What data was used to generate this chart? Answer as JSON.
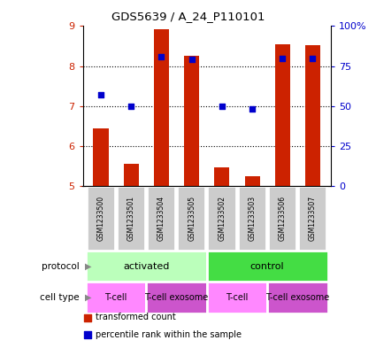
{
  "title": "GDS5639 / A_24_P110101",
  "samples": [
    "GSM1233500",
    "GSM1233501",
    "GSM1233504",
    "GSM1233505",
    "GSM1233502",
    "GSM1233503",
    "GSM1233506",
    "GSM1233507"
  ],
  "transformed_count": [
    6.45,
    5.55,
    8.93,
    8.25,
    5.48,
    5.25,
    8.55,
    8.52
  ],
  "percentile_rank": [
    57,
    50,
    81,
    79,
    50,
    48,
    80,
    80
  ],
  "ylim_left": [
    5,
    9
  ],
  "ylim_right": [
    0,
    100
  ],
  "yticks_left": [
    5,
    6,
    7,
    8,
    9
  ],
  "yticks_right": [
    0,
    25,
    50,
    75,
    100
  ],
  "ytick_right_labels": [
    "0",
    "25",
    "50",
    "75",
    "100%"
  ],
  "bar_color": "#cc2200",
  "dot_color": "#0000cc",
  "protocol_groups": [
    {
      "label": "activated",
      "start": 0,
      "end": 4,
      "color": "#bbffbb"
    },
    {
      "label": "control",
      "start": 4,
      "end": 8,
      "color": "#44dd44"
    }
  ],
  "cell_type_groups": [
    {
      "label": "T-cell",
      "start": 0,
      "end": 2,
      "color": "#ff88ff"
    },
    {
      "label": "T-cell exosome",
      "start": 2,
      "end": 4,
      "color": "#cc55cc"
    },
    {
      "label": "T-cell",
      "start": 4,
      "end": 6,
      "color": "#ff88ff"
    },
    {
      "label": "T-cell exosome",
      "start": 6,
      "end": 8,
      "color": "#cc55cc"
    }
  ],
  "legend_items": [
    {
      "label": "transformed count",
      "color": "#cc2200"
    },
    {
      "label": "percentile rank within the sample",
      "color": "#0000cc"
    }
  ],
  "sample_box_color": "#cccccc",
  "protocol_label": "protocol",
  "cell_type_label": "cell type",
  "arrow_color": "#888888"
}
